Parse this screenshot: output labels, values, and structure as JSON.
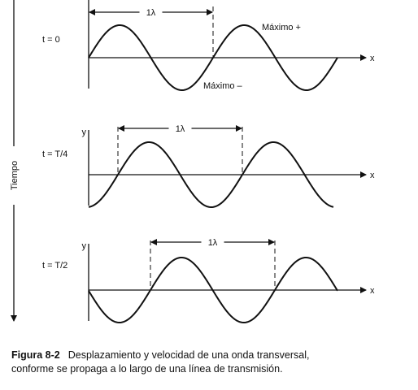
{
  "time_axis_label": "Tiempo",
  "panels": [
    {
      "time_label": "t = 0",
      "wavelength_label": "1λ",
      "x_label": "x",
      "max_plus": "Máximo +",
      "max_minus": "Máximo –"
    },
    {
      "time_label": "t = T/4",
      "wavelength_label": "1λ",
      "x_label": "x",
      "y_label": "y"
    },
    {
      "time_label": "t = T/2",
      "wavelength_label": "1λ",
      "x_label": "x",
      "y_label": "y"
    }
  ],
  "caption": {
    "figure": "Figura 8-2",
    "lines": [
      "Desplazamiento y velocidad de una onda transversal,",
      "conforme se propaga a lo largo de una línea de transmisión."
    ]
  }
}
